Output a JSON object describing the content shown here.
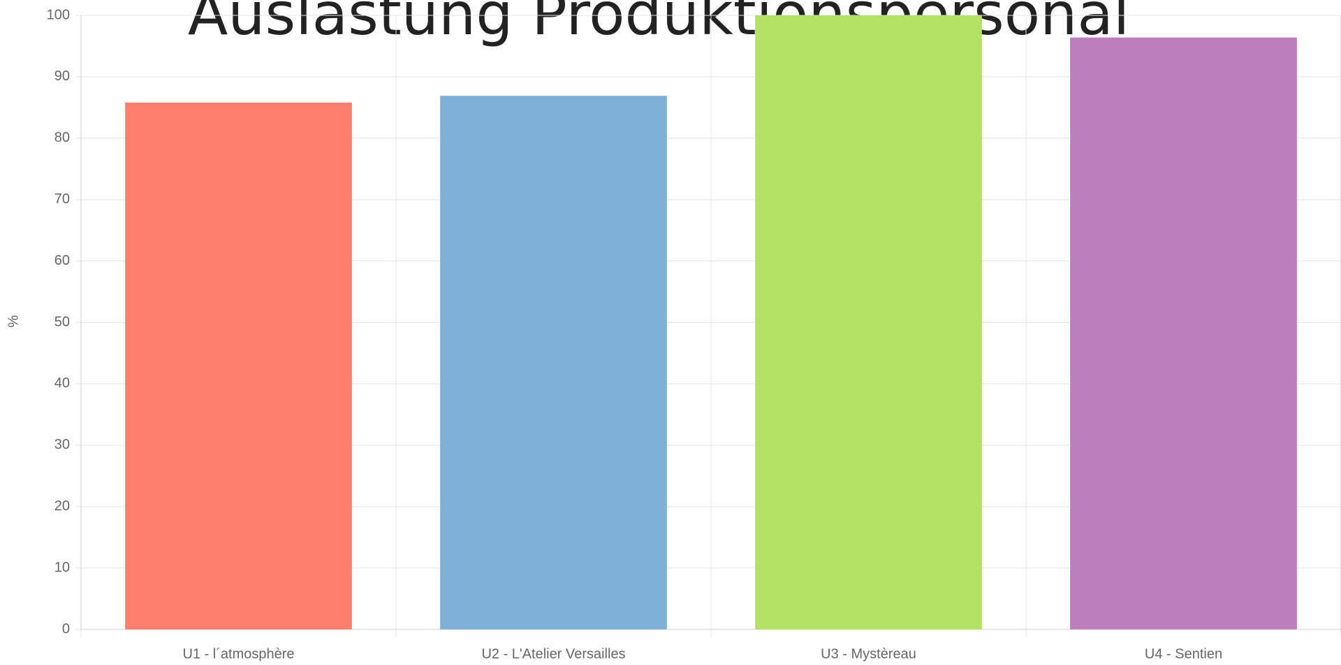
{
  "chart_data": {
    "type": "bar",
    "title": "Auslastung Produktionspersonal",
    "y_label": "%",
    "categories": [
      "U1 - l´atmosphère",
      "U2 - L'Atelier Versailles",
      "U3 - Mystèreau",
      "U4 - Sentien"
    ],
    "values": [
      85.8,
      86.9,
      100,
      96.4
    ],
    "colors": [
      "#fe7f6e",
      "#7fb0d5",
      "#b3e263",
      "#bd7ebd"
    ],
    "ylim": [
      0,
      100
    ],
    "yticks": [
      0,
      10,
      20,
      30,
      40,
      50,
      60,
      70,
      80,
      90,
      100
    ],
    "grid": true
  }
}
